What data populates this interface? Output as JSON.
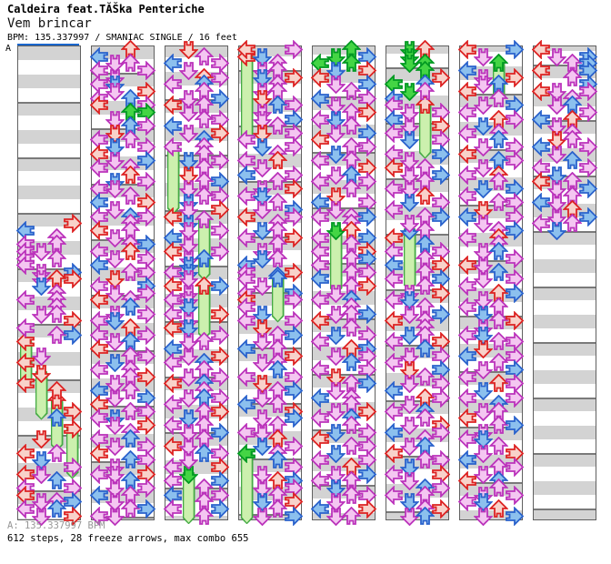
{
  "header": {
    "title": "Caldeira feat.TĂŠka Penteriche",
    "subtitle": "Vem brincar",
    "info": "BPM: 135.337997 / SMANIAC SINGLE / 16 feet"
  },
  "footer": {
    "bpm_line": "A: 135.337997 BPM",
    "stats_line": "612 steps, 28 freeze arrows, max combo 655"
  },
  "section_marker": {
    "label": "A",
    "line_color": "#1a66cc"
  },
  "colors": {
    "band_gray": "#d3d3d3",
    "band_white": "#ffffff",
    "column_border": "#606060",
    "measure_line": "#7a7a7a",
    "footer_gray": "#979797",
    "note_red_stroke": "#dd2222",
    "note_red_fill": "#f8d2ca",
    "note_blue_stroke": "#2a62cc",
    "note_blue_fill": "#8cc0ee",
    "note_pink_stroke": "#bb33bb",
    "note_pink_fill": "#f4c6f1",
    "note_green_stroke": "#009922",
    "note_green_fill": "#44d544",
    "freeze_body_fill": "#ccf0ae",
    "freeze_body_stroke": "#44aa44"
  },
  "chart": {
    "lane_directions": [
      "left",
      "down",
      "up",
      "right"
    ],
    "color_codes": {
      "r": "red 4th note",
      "b": "blue 8th note",
      "p": "pink 16th note",
      "g": "green freeze arrow"
    },
    "columns": [
      [
        "25|...r",
        "26|b...",
        "27|..p.",
        "28|p.p.",
        "29|pp..",
        "30|p.p.",
        "31|p...",
        "32|.p.b",
        "33|.prr",
        "34|.b..",
        "35|..p.",
        "36|p.p.",
        "37|..p.",
        "38|.pp.",
        "39|...r",
        "40|p...",
        "41|..pb",
        "44|.p..",
        "45|r...",
        "48|r...",
        "49|..r.",
        "52|...r",
        "53|..b.",
        "56|.r..",
        "58|r.p.",
        "59|.b..",
        "60|...p",
        "61|rp..",
        "62|..b.",
        "63|p..p",
        "64|r...",
        "65|.ppb",
        "66|p.b.",
        "67|.p.r"
      ],
      [
        "0|..r.",
        "1|b...",
        "2|.pp.",
        "3|p..p",
        "4|.p..",
        "5|pb..",
        "6|.p.r",
        "7|p.b.",
        "8|r..p",
        "9|..gg",
        "10|.p..",
        "11|..bp",
        "12|.r..",
        "13|p.p.",
        "14|.b.p",
        "15|r...",
        "16|.p.b",
        "17|p.p.",
        "18|..r.",
        "19|.b.p",
        "20|pp..",
        "21|..p.",
        "22|b..r",
        "23|.p..",
        "24|p.bp",
        "25|..p.",
        "26|r.p.",
        "27|.p..",
        "28|..pb",
        "29|p.r.",
        "30|.p.p",
        "31|b...",
        "32|..pp",
        "33|.r..",
        "34|p..b",
        "35|.p.p",
        "36|r.p.",
        "37|..b.",
        "38|.p.p",
        "39|pb..",
        "40|..r.",
        "41|p..p",
        "42|.pb.",
        "43|r...",
        "44|..pp",
        "45|.b..",
        "46|p.p.",
        "47|..pr",
        "48|.p..",
        "49|b.p.",
        "50|.p.b",
        "51|r...",
        "52|..pp",
        "53|pb..",
        "54|.p.r",
        "55|..p.",
        "56|p.b.",
        "57|.p.p",
        "58|r...",
        "59|..bp",
        "60|.p..",
        "61|pp.r",
        "62|..b.",
        "63|.p.p",
        "64|b.p.",
        "65|.p..",
        "66|..pb",
        "67|pp.."
      ],
      [
        "0|.r..",
        "1|..p.",
        "2|b..p",
        "3|.p..",
        "4|..rp",
        "5|p.b.",
        "6|..p.",
        "7|.p.b",
        "8|r.p.",
        "9|.p..",
        "10|..pp",
        "11|b...",
        "12|.p.r",
        "13|..b.",
        "14|..p.",
        "15|..p.",
        "16|.b.p",
        "17|..p.",
        "18|.r..",
        "19|..pb",
        "20|.p..",
        "21|..pp",
        "22|.b..",
        "23|.p.r",
        "24|r...",
        "25|.b..",
        "26|.p.p",
        "27|b...",
        "28|.p..",
        "29|r..p",
        "30|.pb.",
        "31|.b..",
        "32|pb..",
        "33|.p..",
        "34|r..b",
        "35|.p..",
        "36|pp..",
        "37|.b..",
        "38|p..r",
        "39|.p..",
        "40|rb..",
        "41|...p",
        "42|.pp.",
        "43|b...",
        "44|.p.r",
        "45|p.b.",
        "46|..p.",
        "47|.p.p",
        "48|r.b.",
        "49|..p.",
        "50|.pbp",
        "51|p...",
        "52|..pr",
        "53|.b..",
        "54|p.p.",
        "55|.p.b",
        "56|..p.",
        "57|rp..",
        "58|..bp",
        "59|.p..",
        "60|p..r",
        "62|p..b",
        "63|..p.",
        "64|b..p",
        "65|..p.",
        "66|p..b",
        "67|..p."
      ],
      [
        "0|r..p",
        "1|.b..",
        "2|..p.",
        "3|.pp.",
        "4|.b.r",
        "5|..p.",
        "6|.pp.",
        "7|.r..",
        "8|..bp",
        "9|.p..",
        "10|.p.b",
        "11|..p.",
        "12|.r.p",
        "13|p...",
        "14|.b.p",
        "15|..p.",
        "16|p.r.",
        "17|.p..",
        "18|b..p",
        "19|..p.",
        "20|.p.r",
        "21|pb..",
        "22|..p.",
        "23|.p.b",
        "24|r..p",
        "25|..p.",
        "26|.bp.",
        "27|p..r",
        "28|..p.",
        "29|.p..",
        "30|.bp.",
        "31|b...",
        "32|p..r",
        "33|p.b.",
        "34|.p..",
        "35|p..b",
        "36|r..p",
        "37|p...",
        "38|.b..",
        "39|p..p",
        "40|.r..",
        "41|..pb",
        "42|.p..",
        "43|b.p.",
        "44|...r",
        "45|.pp.",
        "46|..b.",
        "47|p..p",
        "48|.r..",
        "49|..pb",
        "50|.p..",
        "51|b.p.",
        "52|...r",
        "53|.p.b",
        "54|..p.",
        "55|pp..",
        "56|..r.",
        "57|.b.p",
        "58|..p.",
        "59|..b.",
        "60|...p",
        "61|.p..",
        "62|..rb",
        "63|.p.p",
        "64|..p.",
        "65|.b.r",
        "66|..p.",
        "67|.p.b"
      ],
      [
        "0|..g.",
        "1|.g.b",
        "2|g.g.",
        "3|.b.r",
        "4|r...",
        "5|.p.b",
        "6|..p.",
        "7|b..p",
        "8|.p..",
        "9|..pr",
        "10|pb..",
        "11|..p.",
        "12|.p.b",
        "13|r...",
        "14|..pp",
        "15|.b..",
        "16|p.p.",
        "17|...r",
        "18|.pb.",
        "19|p..p",
        "20|..p.",
        "21|.r..",
        "22|b..p",
        "23|.p..",
        "24|p.pb",
        "25|..p.",
        "26|..r.",
        "27|p..b",
        "28|..p.",
        "29|p..r",
        "30|..pb",
        "31|p...",
        "32|..pp",
        "33|b...",
        "34|..pr",
        "35|.p..",
        "36|p.b.",
        "37|..p.",
        "38|.ppb",
        "39|r...",
        "40|..p.",
        "41|.b.p",
        "42|p...",
        "43|..rb",
        "44|.p.p",
        "45|..b.",
        "46|p..p",
        "47|.r..",
        "48|..pb",
        "49|.p..",
        "50|b.p.",
        "51|..p.",
        "52|.p.r",
        "53|p.b.",
        "54|..p.",
        "55|.b.p",
        "56|r...",
        "57|..pp",
        "58|.b..",
        "59|p..p",
        "60|..r.",
        "61|.p.b",
        "62|p.p.",
        "63|.b..",
        "64|..pp",
        "65|.p..",
        "66|b..r",
        "67|.pp."
      ],
      [
        "0|.gr.",
        "1|.g..",
        "2|.gg.",
        "3|..g.",
        "4|...r",
        "5|g.b.",
        "6|.gp.",
        "7|b...",
        "8|p...",
        "9|.p.p",
        "10|b...",
        "11|.p.r",
        "12|p...",
        "13|.b.p",
        "15|p..b",
        "16|.p..",
        "17|r.p.",
        "18|.p.b",
        "19|..p.",
        "20|pp..",
        "21|..r.",
        "22|.b.p",
        "23|p...",
        "24|..pb",
        "25|.p..",
        "26|..p.",
        "27|r...",
        "28|..b.",
        "29|p..p",
        "30|..p.",
        "31|b..r",
        "32|..p.",
        "33|p..b",
        "34|..p.",
        "35|.p.r",
        "36|pb..",
        "37|..p.",
        "38|.p.b",
        "39|r.p.",
        "40|..p.",
        "41|.bp.",
        "42|p..r",
        "43|..b.",
        "44|.p.p",
        "45|p...",
        "46|.r.b",
        "47|..p.",
        "48|.p.p",
        "49|b...",
        "50|..rp",
        "51|.p..",
        "52|p.b.",
        "53|..p.",
        "54|.p.r",
        "55|b..p",
        "56|..p.",
        "57|.pb.",
        "58|r...",
        "59|..pp",
        "60|.b..",
        "61|p..r",
        "62|.p..",
        "63|..bp",
        "64|p.p.",
        "65|.b..",
        "66|..pr",
        "67|.pb."
      ],
      [
        "0|r..b",
        "1|.p..",
        "3|b...",
        "4|.p.r",
        "5|.pb.",
        "6|r...",
        "7|..p.",
        "8|.p.b",
        "9|p...",
        "10|..rp",
        "11|.b..",
        "12|p.p.",
        "13|..b.",
        "14|.p.p",
        "15|r...",
        "16|..bp",
        "17|.p..",
        "18|p.r.",
        "19|..p.",
        "20|.b.b",
        "21|p...",
        "22|..pp",
        "23|.r..",
        "24|b..p",
        "25|.p..",
        "26|..pb",
        "27|p.r.",
        "28|..p.",
        "29|.pb.",
        "30|...p",
        "31|rp..",
        "32|..b.",
        "33|.p.p",
        "34|p...",
        "35|..rb",
        "36|.p..",
        "37|p.p.",
        "38|.b..",
        "39|..pr",
        "40|.p..",
        "41|pb..",
        "42|..pp",
        "43|.r..",
        "44|b..p",
        "45|..p.",
        "46|.p.b",
        "47|p...",
        "48|..rp",
        "49|.b..",
        "50|p..p",
        "51|..b.",
        "52|.pp.",
        "53|r...",
        "54|..pb",
        "55|.p..",
        "56|pb..",
        "57|..p.",
        "58|.p.r",
        "59|b...",
        "60|..pp",
        "61|.p..",
        "62|r.b.",
        "63|..p.",
        "64|.p.p",
        "65|pb..",
        "66|..r.",
        "67|.p.b"
      ],
      [
        "0|r...",
        "1|.p.b",
        "2|..pb",
        "3|r..b",
        "4|..p.",
        "5|...b",
        "6|rp.p",
        "7|..p.",
        "8|.pb.",
        "9|...p",
        "10|b.r.",
        "11|.p..",
        "12|..p.",
        "13|.rp.",
        "14|b..p",
        "15|.p..",
        "16|..b.",
        "17|p..p",
        "18|.b..",
        "19|r.p.",
        "20|.p.b",
        "21|..p.",
        "22|bp..",
        "23|..r.",
        "24|.p.b",
        "25|p.p.",
        "26|.b.."
      ]
    ],
    "freezes": [
      [
        0,
        0,
        42,
        48,
        "r"
      ],
      [
        0,
        1,
        46.5,
        52.5,
        "r"
      ],
      [
        0,
        2,
        50.5,
        57,
        "r"
      ],
      [
        0,
        3,
        54.5,
        61,
        "r"
      ],
      [
        2,
        0,
        14,
        23,
        "p"
      ],
      [
        2,
        2,
        24.5,
        32.5,
        "p"
      ],
      [
        2,
        2,
        34,
        41,
        "r"
      ],
      [
        2,
        1,
        61,
        67.5,
        "g"
      ],
      [
        3,
        0,
        1,
        12.5,
        "r"
      ],
      [
        3,
        2,
        32.5,
        38.5,
        "b"
      ],
      [
        3,
        0,
        58,
        67.5,
        "g"
      ],
      [
        4,
        1,
        26,
        34.5,
        "g"
      ],
      [
        5,
        2,
        8,
        15,
        "r"
      ],
      [
        5,
        1,
        26,
        34,
        "b"
      ],
      [
        6,
        2,
        2,
        6.5,
        "g"
      ]
    ]
  }
}
